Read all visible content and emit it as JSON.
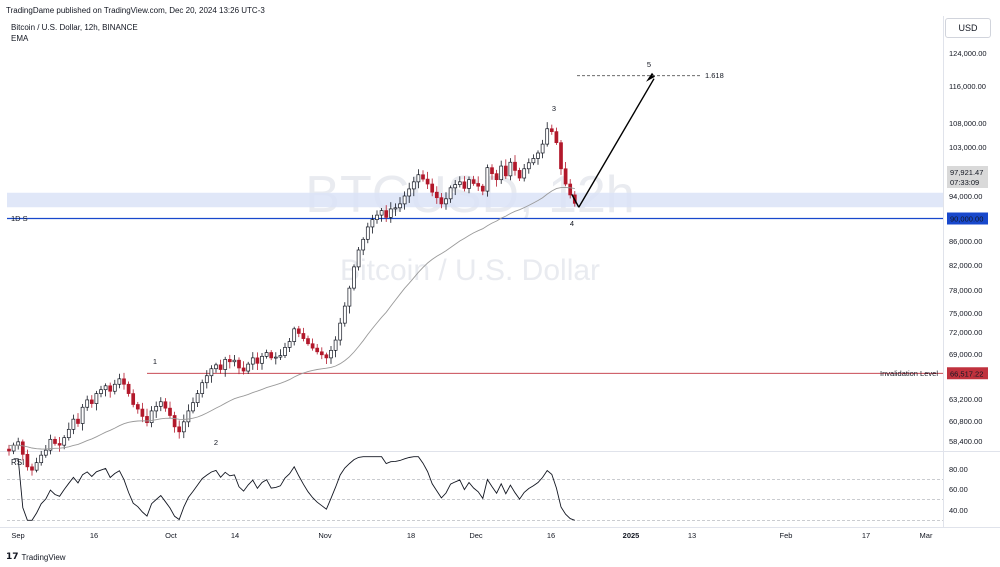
{
  "header": {
    "published": "TradingDame published on TradingView.com, Dec 20, 2024 13:26 UTC-3",
    "symbol": "Bitcoin / U.S. Dollar, 12h, BINANCE",
    "indicator": "EMA",
    "rsi_label": "RSI",
    "currency_button": "USD",
    "footer_brand": "TradingView",
    "footer_mark": "17"
  },
  "watermark": {
    "ticker": "BTCUSD, 12h",
    "name": "Bitcoin / U.S. Dollar"
  },
  "colors": {
    "up": "#131722",
    "down": "#b2182b",
    "support_line": "#1848cc",
    "zone": "#dbe3f7",
    "invalidation": "#c0313d",
    "ema": "#9a9a9a"
  },
  "chart_data": {
    "type": "candlestick",
    "title": "Bitcoin / U.S. Dollar, 12h, BINANCE",
    "price_axis": {
      "ticks": [
        "124,000.00",
        "116,000.00",
        "108,000.00",
        "103,000.00",
        "94,000.00",
        "86,000.00",
        "82,000.00",
        "78,000.00",
        "75,000.00",
        "72,000.00",
        "69,000.00",
        "63,200.00",
        "60,800.00",
        "58,400.00"
      ]
    },
    "time_axis": {
      "ticks": [
        "Sep",
        "16",
        "Oct",
        "14",
        "Nov",
        "18",
        "Dec",
        "16",
        "2025",
        "13",
        "Feb",
        "17",
        "Mar"
      ]
    },
    "current_price": "97,921.47",
    "countdown": "07:33:09",
    "support_level": {
      "price": "90,000.00",
      "label": "1D S"
    },
    "invalidation_level": {
      "price": "66,517.22",
      "label": "Invalidation Level"
    },
    "support_zone": {
      "from": 92000,
      "to": 94600
    },
    "fib_target": {
      "label": "1.618",
      "wave": "5",
      "price": 118500
    },
    "wave_labels": [
      "1",
      "2",
      "3",
      "4",
      "5"
    ],
    "closes": [
      57200,
      57900,
      58300,
      56800,
      55300,
      54900,
      55800,
      56700,
      57300,
      58600,
      58100,
      57900,
      58800,
      59800,
      61000,
      60500,
      62300,
      63100,
      62700,
      63900,
      64400,
      64900,
      64200,
      65100,
      65800,
      65100,
      63900,
      62600,
      62100,
      61300,
      60600,
      61900,
      62400,
      62900,
      62200,
      61400,
      60100,
      59500,
      60700,
      61900,
      62800,
      63900,
      65300,
      66200,
      67100,
      67600,
      67000,
      68300,
      68000,
      68200,
      67200,
      66800,
      67700,
      68500,
      67800,
      68700,
      69200,
      68500,
      68600,
      68800,
      69900,
      70700,
      72500,
      71800,
      71100,
      70400,
      69800,
      69300,
      68900,
      68500,
      69500,
      70900,
      73400,
      75900,
      78300,
      81700,
      84500,
      86300,
      88500,
      89800,
      90600,
      91400,
      90200,
      91700,
      91900,
      92600,
      94000,
      95300,
      96600,
      97900,
      97100,
      96200,
      94700,
      93700,
      92600,
      93500,
      95500,
      96100,
      96600,
      95400,
      97000,
      96300,
      95800,
      94900,
      99200,
      98100,
      97000,
      99500,
      97700,
      100200,
      98700,
      97300,
      99000,
      100100,
      100900,
      101900,
      103600,
      106800,
      106200,
      103900,
      99000,
      96200,
      94200,
      92700
    ],
    "rsi": {
      "ticks": [
        "80.00",
        "60.00",
        "40.00"
      ],
      "upper": 70,
      "lower": 30
    }
  }
}
